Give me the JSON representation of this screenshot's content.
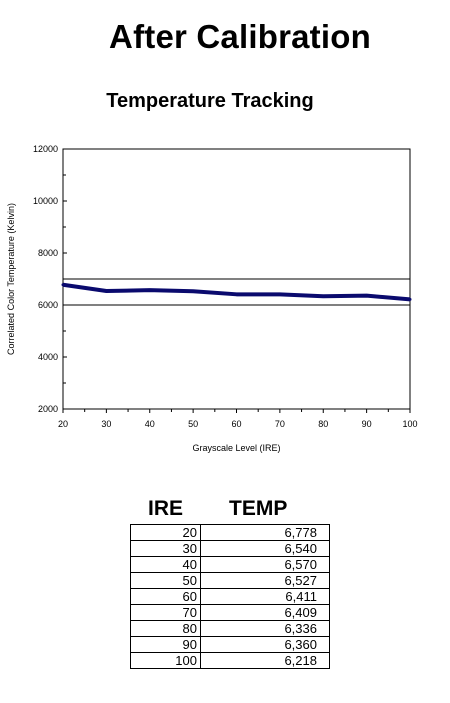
{
  "page": {
    "title": "After Calibration",
    "subtitle": "Temperature Tracking"
  },
  "chart_data": {
    "type": "line",
    "title": "Temperature Tracking",
    "xlabel": "Grayscale Level (IRE)",
    "ylabel": "Correlated Color Temperature (Kelvin)",
    "xlim": [
      20,
      100
    ],
    "ylim": [
      2000,
      12000
    ],
    "x_ticks": [
      20,
      30,
      40,
      50,
      60,
      70,
      80,
      90,
      100
    ],
    "y_ticks": [
      2000,
      4000,
      6000,
      8000,
      10000,
      12000
    ],
    "grid": false,
    "reference_lines": [
      6000,
      7000
    ],
    "series": [
      {
        "x": [
          20,
          30,
          40,
          50,
          60,
          70,
          80,
          90,
          100
        ],
        "y": [
          6778,
          6540,
          6570,
          6527,
          6411,
          6409,
          6336,
          6360,
          6218
        ],
        "color": "#0a0a6e"
      }
    ]
  },
  "table": {
    "headers": [
      "IRE",
      "TEMP"
    ],
    "rows": [
      [
        "20",
        "6,778"
      ],
      [
        "30",
        "6,540"
      ],
      [
        "40",
        "6,570"
      ],
      [
        "50",
        "6,527"
      ],
      [
        "60",
        "6,411"
      ],
      [
        "70",
        "6,409"
      ],
      [
        "80",
        "6,336"
      ],
      [
        "90",
        "6,360"
      ],
      [
        "100",
        "6,218"
      ]
    ]
  }
}
